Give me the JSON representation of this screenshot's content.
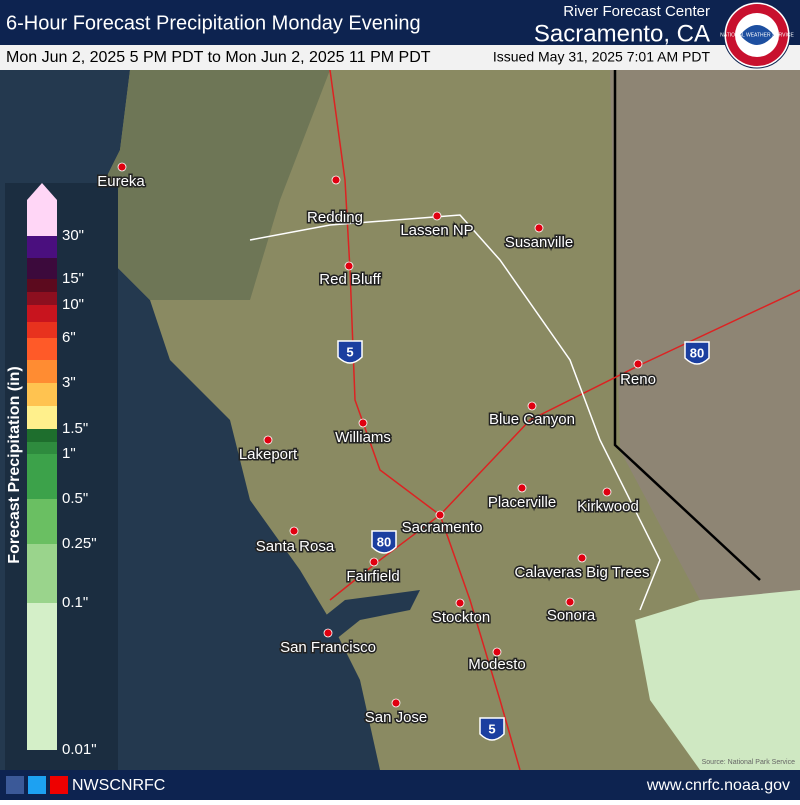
{
  "header": {
    "title": "6-Hour Forecast Precipitation Monday Evening",
    "subtitle": "Mon Jun 2, 2025 5 PM PDT to Mon Jun 2, 2025 11 PM PDT",
    "issued": "Issued May 31, 2025 7:01 AM PDT",
    "agency": "River Forecast Center",
    "office": "Sacramento, CA",
    "logo_text": "NATIONAL WEATHER SERVICE"
  },
  "legend": {
    "title": "Forecast Precipitation (in)",
    "labels": [
      "30\"",
      "15\"",
      "10\"",
      "6\"",
      "3\"",
      "1.5\"",
      "1\"",
      "0.5\"",
      "0.25\"",
      "0.1\"",
      "0.01\""
    ],
    "colors": [
      "#ffd6f6",
      "#4a0f7e",
      "#3c0a3c",
      "#5c0a1e",
      "#8c0f1f",
      "#c8141e",
      "#e8321e",
      "#ff5a28",
      "#ff8c32",
      "#ffc350",
      "#fff08c",
      "#1e6e2d",
      "#2e8b3e",
      "#3ca24a",
      "#6abf62",
      "#9ad48c",
      "#d4efc8"
    ]
  },
  "cities": [
    "Eureka",
    "Redding",
    "Lassen NP",
    "Susanville",
    "Red Bluff",
    "Reno",
    "Blue Canyon",
    "Williams",
    "Lakeport",
    "Placerville",
    "Kirkwood",
    "Sacramento",
    "Santa Rosa",
    "Calaveras Big Trees",
    "Fairfield",
    "Stockton",
    "Sonora",
    "San Francisco",
    "Modesto",
    "San Jose"
  ],
  "shields": [
    "5",
    "80",
    "80",
    "5"
  ],
  "footer": {
    "handle": "NWSCNRFC",
    "url": "www.cnrfc.noaa.gov",
    "source": "Source: National Park Service"
  }
}
